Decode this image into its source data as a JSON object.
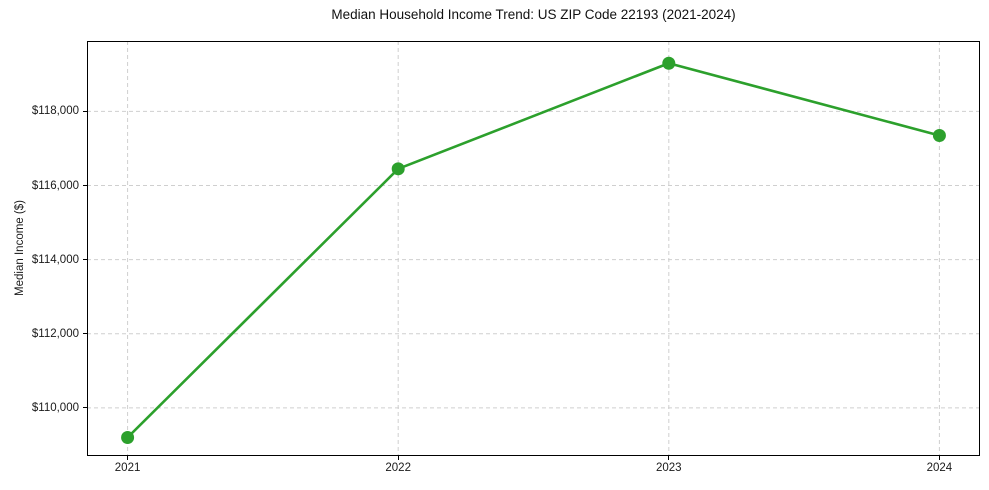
{
  "chart_data": {
    "type": "line",
    "title": "Median Household Income Trend: US ZIP Code 22193 (2021-2024)",
    "xlabel": "",
    "ylabel": "Median Income ($)",
    "x": [
      2021,
      2022,
      2023,
      2024
    ],
    "categories": [
      "2021",
      "2022",
      "2023",
      "2024"
    ],
    "series": [
      {
        "name": "Median Income",
        "values": [
          109200,
          116450,
          119300,
          117350
        ]
      }
    ],
    "xticks": [
      2021,
      2022,
      2023,
      2024
    ],
    "xtick_labels": [
      "2021",
      "2022",
      "2023",
      "2024"
    ],
    "yticks": [
      110000,
      112000,
      114000,
      116000,
      118000
    ],
    "ytick_labels": [
      "$110,000",
      "$112,000",
      "$114,000",
      "$116,000",
      "$118,000"
    ],
    "xlim": [
      2020.85,
      2024.15
    ],
    "ylim": [
      108700,
      119900
    ],
    "grid": true,
    "legend": "none",
    "line_color": "#2ca02c",
    "marker": "circle",
    "marker_radius": 6.5,
    "line_width": 2.6,
    "grid_color": "#cfcfcf",
    "axis_color": "#000000",
    "text_color": "#1a1a1a",
    "background_color": "#ffffff"
  }
}
